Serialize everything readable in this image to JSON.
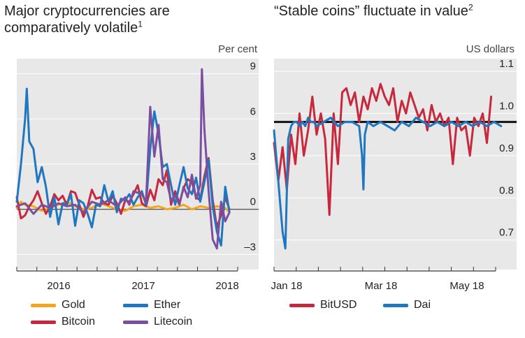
{
  "chart_data": [
    {
      "type": "line",
      "title": "Major cryptocurrencies are comparatively volatile",
      "title_footnote": "1",
      "ylabel": "Per cent",
      "x_tick_labels": [
        "2016",
        "2017",
        "2018"
      ],
      "xlim": [
        2015.5,
        2018.3
      ],
      "ylim": [
        -4,
        10
      ],
      "y_ticks": [
        -3,
        0,
        3,
        6,
        9
      ],
      "y_tick_labels": [
        "–3",
        "0",
        "3",
        "6",
        "9"
      ],
      "grid": "horizontal",
      "legend_position": "bottom",
      "series": [
        {
          "name": "Gold",
          "color": "#f4a71c",
          "x": [
            2015.5,
            2015.55,
            2015.6,
            2015.7,
            2015.8,
            2015.9,
            2016.0,
            2016.1,
            2016.2,
            2016.3,
            2016.4,
            2016.5,
            2016.6,
            2016.7,
            2016.8,
            2016.9,
            2017.0,
            2017.1,
            2017.2,
            2017.3,
            2017.4,
            2017.5,
            2017.6,
            2017.7,
            2017.8,
            2017.9,
            2018.0,
            2018.05
          ],
          "y": [
            0.1,
            0.5,
            0.3,
            0.2,
            -0.1,
            0.1,
            0.3,
            0.5,
            0.2,
            0.0,
            0.1,
            0.4,
            0.2,
            0.0,
            -0.1,
            0.2,
            0.3,
            0.1,
            0.2,
            0.0,
            0.1,
            0.3,
            0.0,
            0.2,
            0.1,
            0.2,
            0.1,
            -0.2
          ]
        },
        {
          "name": "Bitcoin",
          "color": "#c8283c",
          "x": [
            2015.5,
            2015.55,
            2015.6,
            2015.65,
            2015.7,
            2015.75,
            2015.8,
            2015.85,
            2015.9,
            2015.95,
            2016.0,
            2016.05,
            2016.1,
            2016.15,
            2016.2,
            2016.25,
            2016.3,
            2016.35,
            2016.4,
            2016.45,
            2016.5,
            2016.55,
            2016.6,
            2016.65,
            2016.7,
            2016.75,
            2016.8,
            2016.85,
            2016.9,
            2016.95,
            2017.0,
            2017.05,
            2017.1,
            2017.15,
            2017.2,
            2017.25,
            2017.3,
            2017.35,
            2017.4,
            2017.45,
            2017.5,
            2017.55,
            2017.6,
            2017.65,
            2017.7,
            2017.75,
            2017.8,
            2017.85,
            2017.9,
            2017.95,
            2018.0,
            2018.05
          ],
          "y": [
            0.8,
            -0.6,
            -0.4,
            0.2,
            0.6,
            1.2,
            0.4,
            -0.3,
            0.2,
            1.0,
            0.6,
            0.9,
            0.3,
            1.2,
            1.1,
            0.3,
            -0.5,
            0.2,
            1.3,
            0.7,
            0.8,
            0.4,
            0.3,
            0.9,
            0.4,
            -0.3,
            0.6,
            0.5,
            1.0,
            1.6,
            0.4,
            0.2,
            1.3,
            0.6,
            2.0,
            1.6,
            2.6,
            0.3,
            1.2,
            0.4,
            1.4,
            2.0,
            1.8,
            0.8,
            0.6,
            2.2,
            3.4,
            0.6,
            -1.2,
            -0.4,
            0.8,
            0.0
          ]
        },
        {
          "name": "Ether",
          "color": "#1f77c0",
          "x": [
            2015.5,
            2015.55,
            2015.6,
            2015.62,
            2015.65,
            2015.7,
            2015.75,
            2015.8,
            2015.85,
            2015.9,
            2015.95,
            2016.0,
            2016.05,
            2016.1,
            2016.15,
            2016.2,
            2016.25,
            2016.3,
            2016.35,
            2016.4,
            2016.45,
            2016.5,
            2016.55,
            2016.6,
            2016.65,
            2016.7,
            2016.75,
            2016.8,
            2016.85,
            2016.9,
            2016.95,
            2017.0,
            2017.05,
            2017.1,
            2017.15,
            2017.2,
            2017.25,
            2017.3,
            2017.35,
            2017.4,
            2017.45,
            2017.5,
            2017.55,
            2017.6,
            2017.65,
            2017.7,
            2017.75,
            2017.8,
            2017.85,
            2017.9,
            2017.95,
            2018.0,
            2018.05
          ],
          "y": [
            0.5,
            3.0,
            6.0,
            8.0,
            4.5,
            4.0,
            1.8,
            2.8,
            1.5,
            -0.5,
            0.8,
            -1.0,
            0.4,
            0.3,
            1.0,
            -1.1,
            0.6,
            0.4,
            -0.3,
            -1.2,
            0.3,
            0.2,
            1.6,
            0.5,
            1.2,
            -0.2,
            0.7,
            0.6,
            1.0,
            0.3,
            0.8,
            1.2,
            0.3,
            4.0,
            6.5,
            5.0,
            2.8,
            3.0,
            1.6,
            0.3,
            1.6,
            2.8,
            1.4,
            1.0,
            2.1,
            0.5,
            1.8,
            3.3,
            0.2,
            -1.5,
            -2.4,
            1.5,
            -0.2
          ]
        },
        {
          "name": "Litecoin",
          "color": "#7b4fa0",
          "x": [
            2015.5,
            2015.6,
            2015.7,
            2015.8,
            2015.9,
            2016.0,
            2016.1,
            2016.2,
            2016.3,
            2016.4,
            2016.5,
            2016.6,
            2016.7,
            2016.75,
            2016.8,
            2016.85,
            2016.9,
            2017.0,
            2017.05,
            2017.1,
            2017.15,
            2017.2,
            2017.25,
            2017.3,
            2017.35,
            2017.4,
            2017.45,
            2017.5,
            2017.55,
            2017.6,
            2017.65,
            2017.7,
            2017.72,
            2017.75,
            2017.8,
            2017.85,
            2017.9,
            2017.95,
            2018.0,
            2018.05
          ],
          "y": [
            0.2,
            0.4,
            -0.3,
            0.3,
            0.1,
            0.4,
            0.2,
            0.3,
            -0.2,
            0.5,
            0.3,
            0.6,
            0.2,
            0.5,
            0.8,
            0.3,
            1.2,
            1.0,
            0.5,
            6.8,
            3.5,
            5.6,
            2.0,
            1.8,
            0.6,
            0.9,
            0.3,
            1.5,
            0.8,
            2.3,
            0.7,
            1.6,
            9.3,
            5.3,
            1.2,
            -2.0,
            -2.6,
            0.5,
            -0.8,
            -0.2
          ]
        }
      ]
    },
    {
      "type": "line",
      "title": "“Stable coins” fluctuate in value",
      "title_footnote": "2",
      "ylabel": "US dollars",
      "x_tick_labels": [
        "Jan 18",
        "Mar 18",
        "May 18"
      ],
      "xlim": [
        0,
        165
      ],
      "ylim": [
        0.63,
        1.13
      ],
      "y_ticks": [
        0.7,
        0.8,
        0.9,
        1.0,
        1.1
      ],
      "y_tick_labels": [
        "0.7",
        "0.8",
        "0.9",
        "1.0",
        "1.1"
      ],
      "reference_line": 0.98,
      "grid": "horizontal",
      "legend_position": "bottom",
      "series": [
        {
          "name": "BitUSD",
          "color": "#c8283c",
          "x": [
            0,
            3,
            6,
            9,
            12,
            15,
            18,
            21,
            24,
            27,
            30,
            33,
            36,
            39,
            42,
            45,
            48,
            51,
            54,
            57,
            60,
            63,
            66,
            69,
            72,
            75,
            78,
            81,
            84,
            87,
            90,
            93,
            96,
            99,
            102,
            105,
            108,
            111,
            114,
            117,
            120,
            123,
            126,
            129,
            132,
            135,
            138,
            141,
            144,
            147,
            150,
            153
          ],
          "y": [
            0.93,
            0.84,
            0.92,
            0.82,
            0.95,
            0.88,
            1.0,
            0.9,
            0.96,
            1.04,
            0.95,
            1.0,
            0.94,
            0.76,
            1.0,
            0.88,
            1.05,
            1.06,
            1.02,
            1.05,
            0.98,
            1.04,
            1.01,
            1.06,
            1.03,
            1.07,
            1.04,
            1.02,
            1.06,
            0.98,
            1.03,
            1.0,
            1.05,
            1.02,
            0.99,
            1.01,
            0.96,
            1.02,
            0.98,
            1.0,
            0.97,
            0.99,
            0.88,
            0.99,
            0.96,
            0.97,
            0.9,
            0.99,
            0.97,
            1.0,
            0.93,
            1.04
          ]
        },
        {
          "name": "Dai",
          "color": "#1f77c0",
          "x": [
            0,
            2,
            4,
            6,
            8,
            10,
            12,
            14,
            16,
            18,
            20,
            22,
            24,
            26,
            28,
            30,
            35,
            40,
            45,
            50,
            55,
            60,
            62,
            63,
            64,
            66,
            70,
            75,
            80,
            85,
            90,
            95,
            100,
            105,
            110,
            115,
            120,
            125,
            130,
            135,
            140,
            145,
            150,
            155,
            160
          ],
          "y": [
            0.96,
            0.88,
            0.8,
            0.72,
            0.68,
            0.94,
            0.97,
            0.98,
            0.98,
            0.97,
            0.98,
            0.97,
            0.99,
            0.98,
            0.98,
            0.97,
            0.98,
            0.99,
            0.97,
            0.98,
            0.98,
            0.97,
            0.9,
            0.82,
            0.95,
            0.98,
            0.97,
            0.98,
            0.97,
            0.96,
            0.98,
            0.97,
            0.99,
            0.98,
            0.97,
            0.98,
            0.97,
            0.98,
            0.97,
            0.98,
            0.97,
            0.98,
            0.97,
            0.98,
            0.97
          ]
        }
      ]
    }
  ]
}
